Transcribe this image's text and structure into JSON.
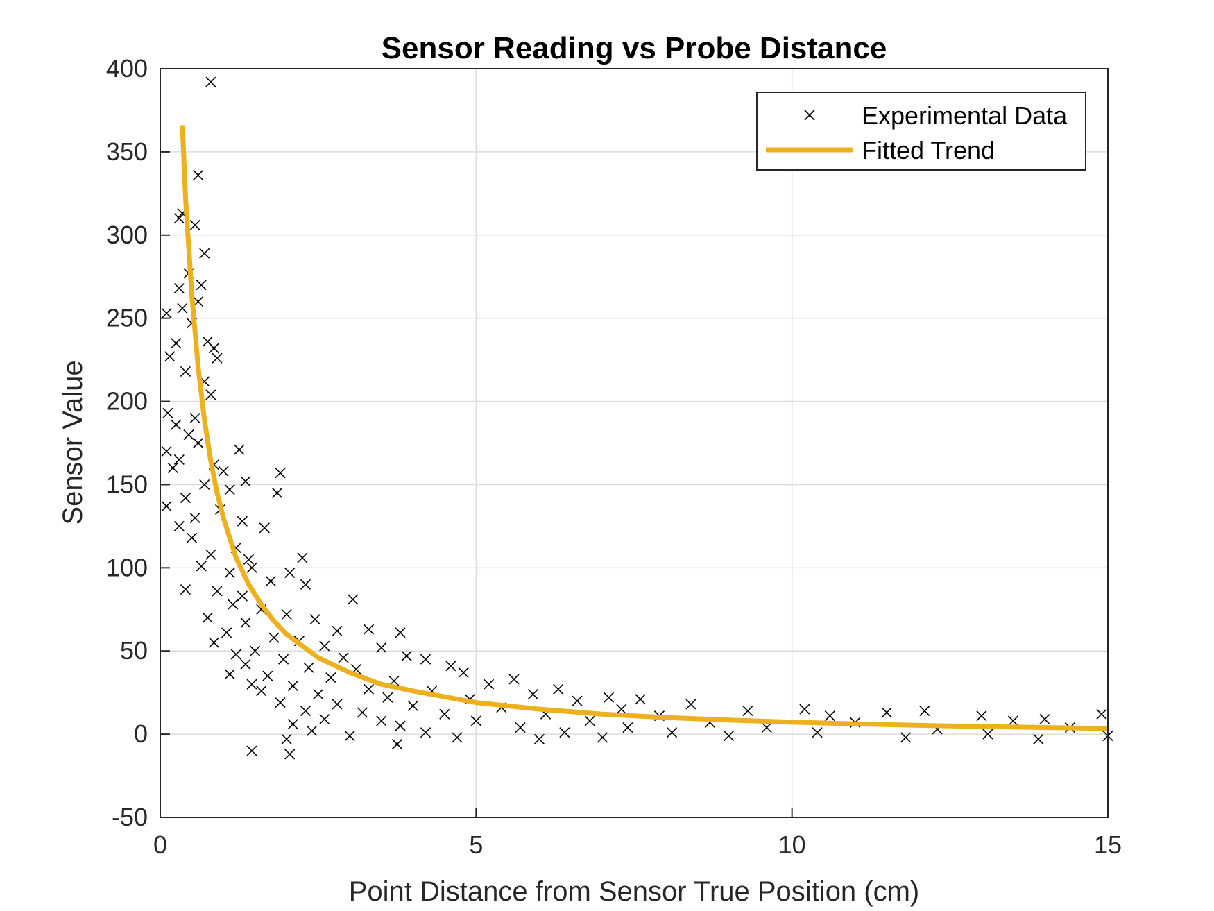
{
  "chart_data": {
    "type": "scatter",
    "title": "Sensor Reading vs Probe Distance",
    "xlabel": "Point Distance from Sensor True Position (cm)",
    "ylabel": "Sensor Value",
    "xlim": [
      0,
      15
    ],
    "ylim": [
      -50,
      400
    ],
    "xticks": [
      0,
      5,
      10,
      15
    ],
    "yticks": [
      -50,
      0,
      50,
      100,
      150,
      200,
      250,
      300,
      350,
      400
    ],
    "grid": true,
    "legend_position": "top-right",
    "series": [
      {
        "name": "Experimental Data",
        "marker": "x",
        "color": "#000000",
        "points": [
          [
            0.8,
            392
          ],
          [
            0.6,
            336
          ],
          [
            0.55,
            306
          ],
          [
            0.35,
            313
          ],
          [
            0.3,
            310
          ],
          [
            0.7,
            289
          ],
          [
            0.45,
            277
          ],
          [
            0.65,
            270
          ],
          [
            0.3,
            268
          ],
          [
            0.6,
            260
          ],
          [
            0.35,
            256
          ],
          [
            0.1,
            253
          ],
          [
            0.5,
            247
          ],
          [
            0.75,
            236
          ],
          [
            0.25,
            235
          ],
          [
            0.85,
            232
          ],
          [
            0.15,
            227
          ],
          [
            0.9,
            226
          ],
          [
            0.4,
            218
          ],
          [
            0.7,
            212
          ],
          [
            0.8,
            204
          ],
          [
            0.12,
            193
          ],
          [
            0.55,
            190
          ],
          [
            0.25,
            186
          ],
          [
            0.45,
            180
          ],
          [
            0.6,
            175
          ],
          [
            0.1,
            170
          ],
          [
            1.25,
            171
          ],
          [
            0.3,
            165
          ],
          [
            0.85,
            162
          ],
          [
            0.2,
            160
          ],
          [
            1.0,
            158
          ],
          [
            1.35,
            152
          ],
          [
            1.9,
            157
          ],
          [
            0.7,
            150
          ],
          [
            1.1,
            147
          ],
          [
            1.85,
            145
          ],
          [
            0.4,
            142
          ],
          [
            0.1,
            137
          ],
          [
            0.95,
            135
          ],
          [
            0.55,
            130
          ],
          [
            1.3,
            128
          ],
          [
            0.3,
            125
          ],
          [
            1.65,
            124
          ],
          [
            0.5,
            118
          ],
          [
            1.2,
            112
          ],
          [
            0.8,
            108
          ],
          [
            1.4,
            105
          ],
          [
            2.25,
            106
          ],
          [
            0.65,
            101
          ],
          [
            1.1,
            97
          ],
          [
            1.45,
            100
          ],
          [
            2.05,
            97
          ],
          [
            0.4,
            87
          ],
          [
            1.75,
            92
          ],
          [
            0.9,
            86
          ],
          [
            1.3,
            83
          ],
          [
            2.3,
            90
          ],
          [
            3.05,
            81
          ],
          [
            1.15,
            78
          ],
          [
            1.6,
            75
          ],
          [
            2.0,
            72
          ],
          [
            2.45,
            69
          ],
          [
            0.75,
            70
          ],
          [
            1.35,
            67
          ],
          [
            3.3,
            63
          ],
          [
            2.8,
            62
          ],
          [
            1.05,
            61
          ],
          [
            1.8,
            58
          ],
          [
            2.2,
            56
          ],
          [
            3.8,
            61
          ],
          [
            0.85,
            55
          ],
          [
            2.6,
            53
          ],
          [
            1.5,
            50
          ],
          [
            3.5,
            52
          ],
          [
            4.2,
            45
          ],
          [
            1.2,
            48
          ],
          [
            1.95,
            45
          ],
          [
            2.9,
            46
          ],
          [
            3.9,
            47
          ],
          [
            4.6,
            41
          ],
          [
            1.35,
            42
          ],
          [
            2.35,
            40
          ],
          [
            3.1,
            39
          ],
          [
            4.8,
            37
          ],
          [
            5.6,
            33
          ],
          [
            1.1,
            36
          ],
          [
            1.7,
            35
          ],
          [
            2.7,
            34
          ],
          [
            3.7,
            32
          ],
          [
            5.2,
            30
          ],
          [
            6.3,
            27
          ],
          [
            1.45,
            30
          ],
          [
            2.1,
            29
          ],
          [
            3.3,
            27
          ],
          [
            4.3,
            26
          ],
          [
            5.9,
            24
          ],
          [
            7.1,
            22
          ],
          [
            7.6,
            21
          ],
          [
            1.6,
            26
          ],
          [
            2.5,
            24
          ],
          [
            3.6,
            22
          ],
          [
            4.9,
            21
          ],
          [
            6.6,
            20
          ],
          [
            8.4,
            18
          ],
          [
            10.2,
            15
          ],
          [
            1.9,
            19
          ],
          [
            2.8,
            18
          ],
          [
            4.0,
            17
          ],
          [
            5.4,
            16
          ],
          [
            7.3,
            15
          ],
          [
            9.3,
            14
          ],
          [
            11.5,
            13
          ],
          [
            12.1,
            14
          ],
          [
            2.3,
            14
          ],
          [
            3.2,
            13
          ],
          [
            4.5,
            12
          ],
          [
            6.1,
            12
          ],
          [
            7.9,
            11
          ],
          [
            10.6,
            11
          ],
          [
            13.0,
            11
          ],
          [
            14.9,
            12
          ],
          [
            2.6,
            9
          ],
          [
            3.5,
            8
          ],
          [
            5.0,
            8
          ],
          [
            6.8,
            8
          ],
          [
            8.7,
            7
          ],
          [
            11.0,
            7
          ],
          [
            13.5,
            8
          ],
          [
            14.0,
            9
          ],
          [
            2.1,
            6
          ],
          [
            3.8,
            5
          ],
          [
            5.7,
            4
          ],
          [
            7.4,
            4
          ],
          [
            9.6,
            4
          ],
          [
            12.3,
            3
          ],
          [
            14.4,
            4
          ],
          [
            2.4,
            2
          ],
          [
            4.2,
            1
          ],
          [
            6.4,
            1
          ],
          [
            8.1,
            1
          ],
          [
            10.4,
            1
          ],
          [
            13.1,
            0
          ],
          [
            15.0,
            -1
          ],
          [
            3.0,
            -1
          ],
          [
            4.7,
            -2
          ],
          [
            6.0,
            -3
          ],
          [
            7.0,
            -2
          ],
          [
            9.0,
            -1
          ],
          [
            11.8,
            -2
          ],
          [
            13.9,
            -3
          ],
          [
            3.75,
            -6
          ],
          [
            2.0,
            -3
          ],
          [
            1.45,
            -10
          ],
          [
            2.05,
            -12
          ]
        ]
      },
      {
        "name": "Fitted Trend",
        "color": "#EDB120",
        "x": [
          0.35,
          0.4,
          0.5,
          0.6,
          0.7,
          0.8,
          0.9,
          1.0,
          1.2,
          1.4,
          1.6,
          1.8,
          2.0,
          2.5,
          3.0,
          3.5,
          4.0,
          5.0,
          6.0,
          7.0,
          8.0,
          9.0,
          10.0,
          11.0,
          12.0,
          13.0,
          14.0,
          15.0
        ],
        "y": [
          366,
          323,
          264,
          221,
          189,
          164,
          145,
          130,
          106,
          90,
          78,
          68,
          60,
          46,
          37,
          30,
          26,
          19,
          15,
          12,
          10,
          8.5,
          7.2,
          6.2,
          5.3,
          4.6,
          4.0,
          3.4
        ]
      }
    ]
  }
}
